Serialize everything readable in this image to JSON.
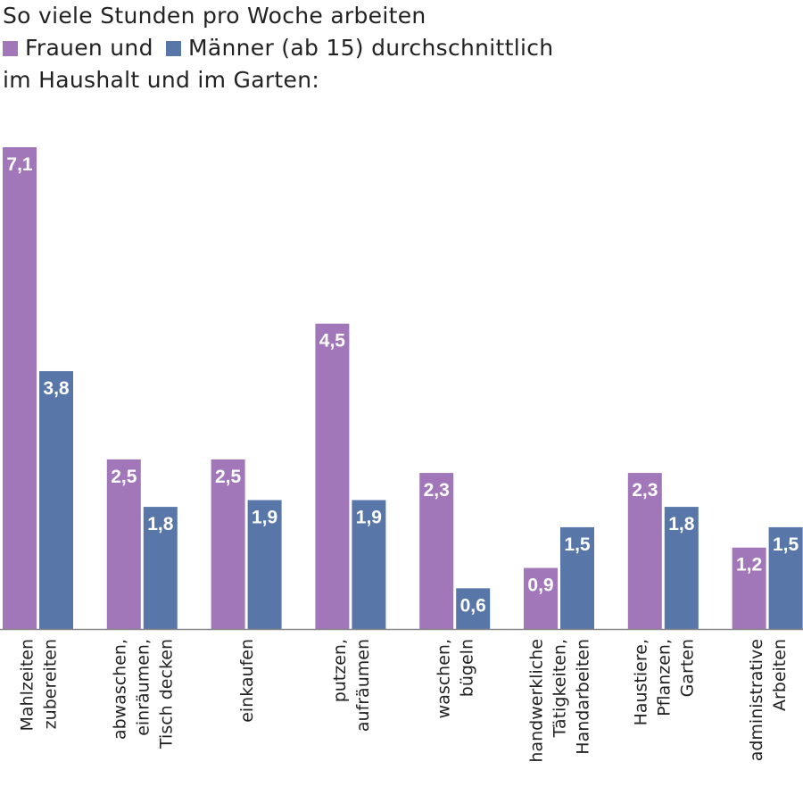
{
  "title": {
    "line1": "So viele Stunden pro Woche arbeiten",
    "legend_women": "Frauen und",
    "legend_men": "Männer (ab 15) durchschnittlich",
    "line3": "im Haushalt und im Garten:"
  },
  "chart_data": {
    "type": "bar",
    "categories": [
      [
        "Mahlzeiten",
        "zubereiten"
      ],
      [
        "abwaschen,",
        "einräumen,",
        "Tisch decken"
      ],
      [
        "einkaufen"
      ],
      [
        "putzen,",
        "aufräumen"
      ],
      [
        "waschen,",
        "bügeln"
      ],
      [
        "handwerkliche",
        "Tätigkeiten,",
        "Handarbeiten"
      ],
      [
        "Haustiere,",
        "Pflanzen,",
        "Garten"
      ],
      [
        "administrative",
        "Arbeiten"
      ]
    ],
    "series": [
      {
        "name": "Frauen",
        "color": "#a177b9",
        "values": [
          7.1,
          2.5,
          2.5,
          4.5,
          2.3,
          0.9,
          2.3,
          1.2
        ],
        "labels": [
          "7,1",
          "2,5",
          "2,5",
          "4,5",
          "2,3",
          "0,9",
          "2,3",
          "1,2"
        ]
      },
      {
        "name": "Männer",
        "color": "#5877a8",
        "values": [
          3.8,
          1.8,
          1.9,
          1.9,
          0.6,
          1.5,
          1.8,
          1.5
        ],
        "labels": [
          "3,8",
          "1,8",
          "1,9",
          "1,9",
          "0,6",
          "1,5",
          "1,8",
          "1,5"
        ]
      }
    ],
    "ylim": [
      0,
      7.1
    ],
    "grid": false,
    "unit": "Stunden pro Woche"
  }
}
